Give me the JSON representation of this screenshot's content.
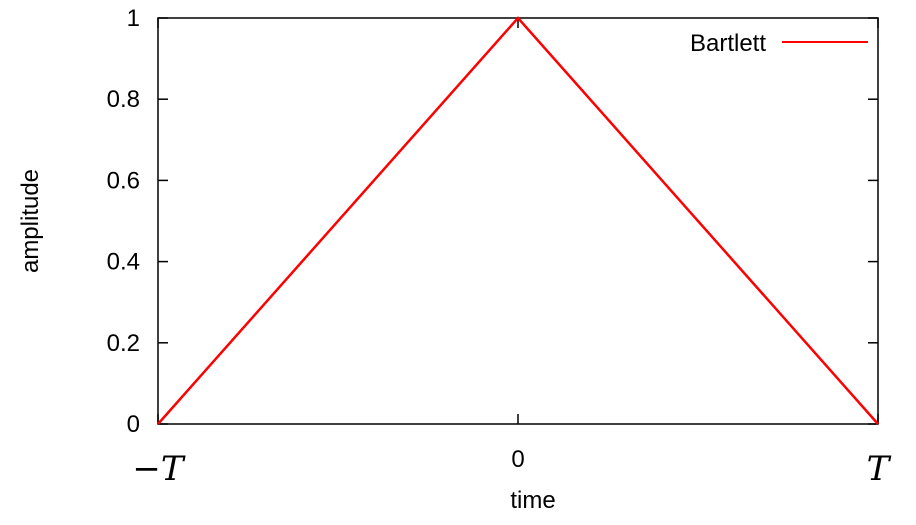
{
  "chart_data": {
    "type": "line",
    "title": "",
    "xlabel": "time",
    "ylabel": "amplitude",
    "xlim": [
      -1,
      1
    ],
    "ylim": [
      0,
      1
    ],
    "grid": false,
    "legend_position": "top-right",
    "x_ticks": [
      {
        "value": -1,
        "label": "−T",
        "math": true
      },
      {
        "value": 0,
        "label": "0",
        "math": false
      },
      {
        "value": 1,
        "label": "T",
        "math": true
      }
    ],
    "y_ticks": [
      {
        "value": 0,
        "label": "0"
      },
      {
        "value": 0.2,
        "label": "0.2"
      },
      {
        "value": 0.4,
        "label": "0.4"
      },
      {
        "value": 0.6,
        "label": "0.6"
      },
      {
        "value": 0.8,
        "label": "0.8"
      },
      {
        "value": 1,
        "label": "1"
      }
    ],
    "series": [
      {
        "name": "Bartlett",
        "color": "#ff0000",
        "x": [
          -1,
          0,
          1
        ],
        "y": [
          0,
          1,
          0
        ]
      }
    ]
  }
}
